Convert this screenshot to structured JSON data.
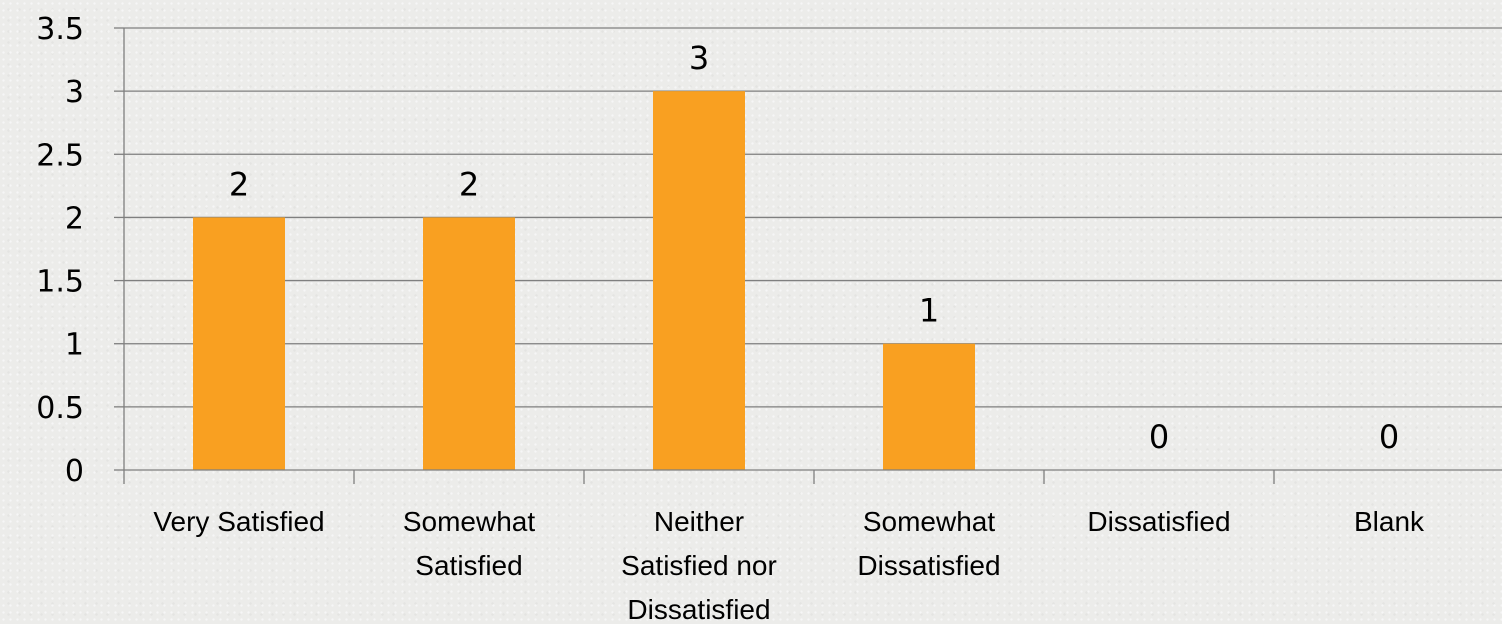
{
  "chart_data": {
    "type": "bar",
    "categories": [
      [
        "Very Satisfied"
      ],
      [
        "Somewhat",
        "Satisfied"
      ],
      [
        "Neither",
        "Satisfied nor",
        "Dissatisfied"
      ],
      [
        "Somewhat",
        "Dissatisfied"
      ],
      [
        "Dissatisfied"
      ],
      [
        "Blank"
      ]
    ],
    "values": [
      2,
      2,
      3,
      1,
      0,
      0
    ],
    "data_labels": [
      "2",
      "2",
      "3",
      "1",
      "0",
      "0"
    ],
    "y_ticks": [
      "0",
      "0.5",
      "1",
      "1.5",
      "2",
      "2.5",
      "3",
      "3.5"
    ],
    "ylim": [
      0,
      3.5
    ],
    "grid": true,
    "legend": "none",
    "bar_color": "#f9a021",
    "title": "",
    "xlabel": "",
    "ylabel": ""
  }
}
